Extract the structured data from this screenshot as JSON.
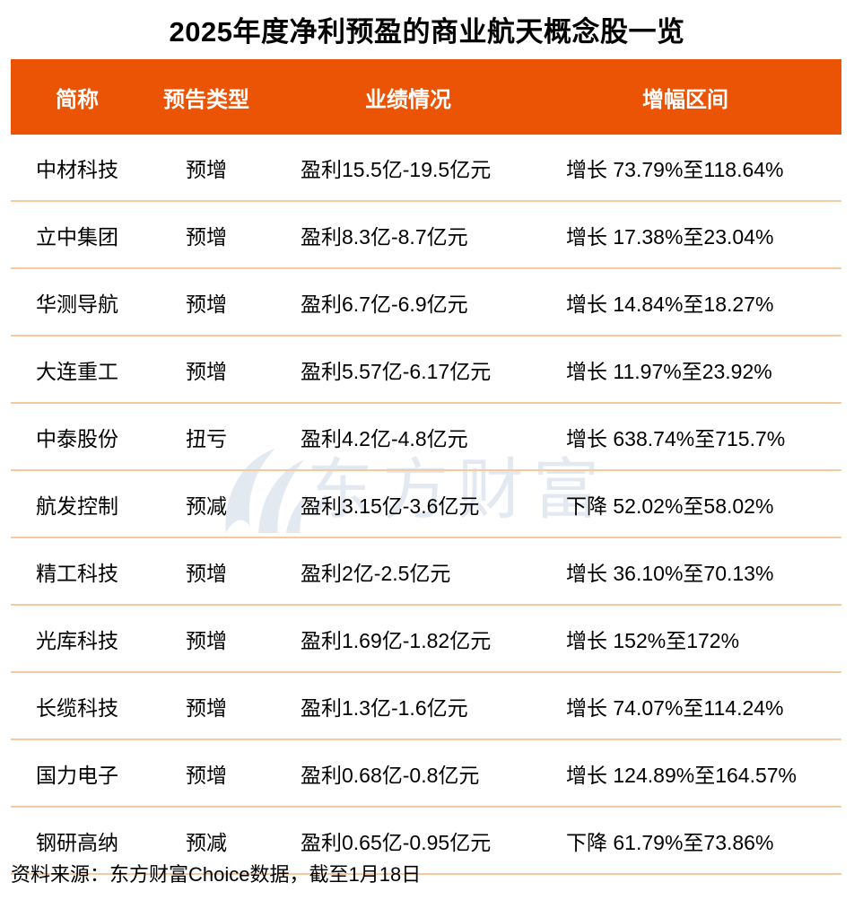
{
  "title": "2025年度净利预盈的商业航天概念股一览",
  "colors": {
    "page-bg": "#FFFFFF",
    "title-text": "#000000",
    "header-bg": "#EA5404",
    "header-text": "#FFFFFF",
    "divider": "#F6C9A1",
    "body-text": "#000000",
    "watermark": "#E3E9F1"
  },
  "watermark": {
    "logo": "eastmoney-leaf-logo",
    "text": "东方财富"
  },
  "chart_data": {
    "type": "table",
    "title": "2025年度净利预盈的商业航天概念股一览",
    "columns": [
      "简称",
      "预告类型",
      "业绩情况",
      "增幅区间"
    ],
    "rows": [
      [
        "中材科技",
        "预增",
        "盈利15.5亿-19.5亿元",
        "增长 73.79%至118.64%"
      ],
      [
        "立中集团",
        "预增",
        "盈利8.3亿-8.7亿元",
        "增长 17.38%至23.04%"
      ],
      [
        "华测导航",
        "预增",
        "盈利6.7亿-6.9亿元",
        "增长 14.84%至18.27%"
      ],
      [
        "大连重工",
        "预增",
        "盈利5.57亿-6.17亿元",
        "增长 11.97%至23.92%"
      ],
      [
        "中泰股份",
        "扭亏",
        "盈利4.2亿-4.8亿元",
        "增长 638.74%至715.7%"
      ],
      [
        "航发控制",
        "预减",
        "盈利3.15亿-3.6亿元",
        "下降 52.02%至58.02%"
      ],
      [
        "精工科技",
        "预增",
        "盈利2亿-2.5亿元",
        "增长 36.10%至70.13%"
      ],
      [
        "光库科技",
        "预增",
        "盈利1.69亿-1.82亿元",
        "增长 152%至172%"
      ],
      [
        "长缆科技",
        "预增",
        "盈利1.3亿-1.6亿元",
        "增长 74.07%至114.24%"
      ],
      [
        "国力电子",
        "预增",
        "盈利0.68亿-0.8亿元",
        "增长 124.89%至164.57%"
      ],
      [
        "钢研高纳",
        "预减",
        "盈利0.65亿-0.95亿元",
        "下降 61.79%至73.86%"
      ]
    ],
    "source_note": "资料来源：东方财富Choice数据，截至1月18日",
    "layout": {
      "grid": "off",
      "header_position": "top",
      "watermark_position": "center"
    }
  }
}
